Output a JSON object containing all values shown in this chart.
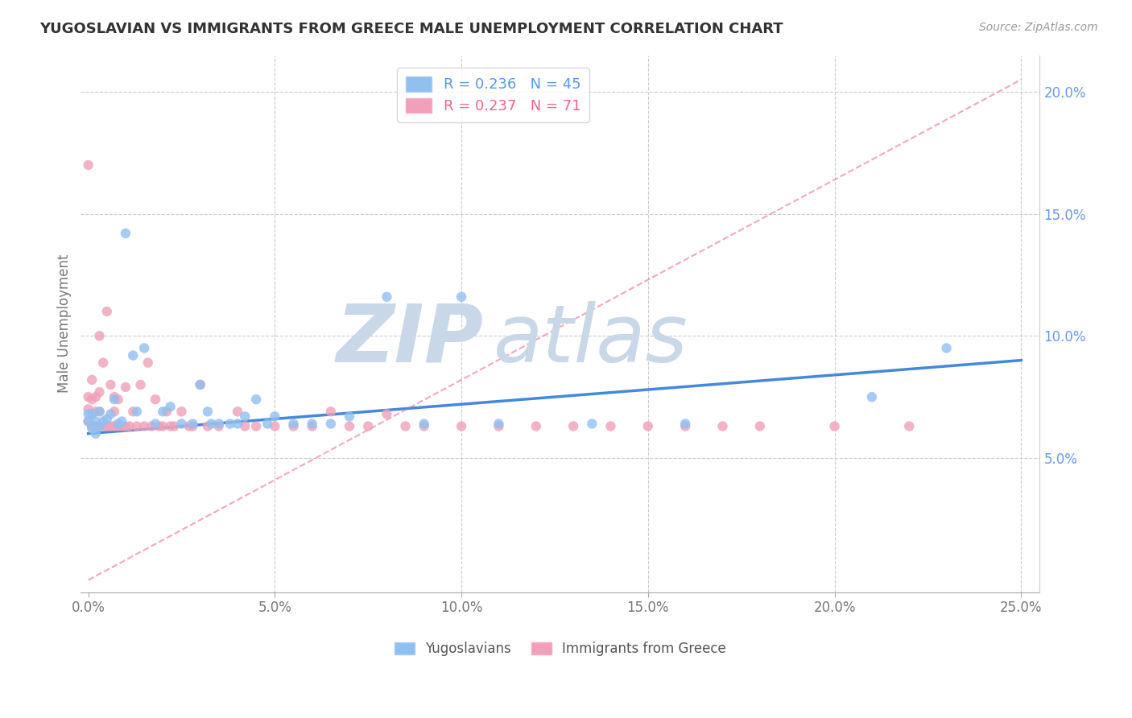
{
  "title": "YUGOSLAVIAN VS IMMIGRANTS FROM GREECE MALE UNEMPLOYMENT CORRELATION CHART",
  "source_text": "Source: ZipAtlas.com",
  "ylabel": "Male Unemployment",
  "xlabel_ticks": [
    "0.0%",
    "5.0%",
    "10.0%",
    "15.0%",
    "20.0%",
    "25.0%"
  ],
  "xlabel_vals": [
    0.0,
    0.05,
    0.1,
    0.15,
    0.2,
    0.25
  ],
  "ylabel_ticks": [
    "5.0%",
    "10.0%",
    "15.0%",
    "20.0%"
  ],
  "ylabel_vals": [
    0.05,
    0.1,
    0.15,
    0.2
  ],
  "xlim": [
    -0.002,
    0.255
  ],
  "ylim": [
    -0.005,
    0.215
  ],
  "series1_color": "#90C0F0",
  "series2_color": "#F0A0B8",
  "series1_line_color": "#4488DD",
  "series2_line_color": "#E87090",
  "watermark_zip_color": "#C8D8E8",
  "watermark_atlas_color": "#C8D8E8",
  "background_color": "#FFFFFF",
  "grid_color": "#CCCCCC",
  "yug_line_x0": 0.0,
  "yug_line_x1": 0.25,
  "yug_line_y0": 0.06,
  "yug_line_y1": 0.09,
  "greece_line_x0": 0.0,
  "greece_line_x1": 0.25,
  "greece_line_y0": 0.0,
  "greece_line_y1": 0.205,
  "yugoslavians_x": [
    0.0,
    0.0,
    0.001,
    0.001,
    0.002,
    0.002,
    0.003,
    0.003,
    0.004,
    0.005,
    0.006,
    0.007,
    0.008,
    0.009,
    0.01,
    0.012,
    0.013,
    0.015,
    0.018,
    0.02,
    0.022,
    0.025,
    0.028,
    0.03,
    0.032,
    0.033,
    0.035,
    0.038,
    0.04,
    0.042,
    0.045,
    0.048,
    0.05,
    0.055,
    0.06,
    0.065,
    0.07,
    0.08,
    0.09,
    0.1,
    0.11,
    0.135,
    0.16,
    0.21,
    0.23
  ],
  "yugoslavians_y": [
    0.065,
    0.068,
    0.062,
    0.068,
    0.06,
    0.065,
    0.063,
    0.069,
    0.065,
    0.066,
    0.068,
    0.074,
    0.064,
    0.065,
    0.142,
    0.092,
    0.069,
    0.095,
    0.064,
    0.069,
    0.071,
    0.064,
    0.064,
    0.08,
    0.069,
    0.064,
    0.064,
    0.064,
    0.064,
    0.067,
    0.074,
    0.064,
    0.067,
    0.064,
    0.064,
    0.064,
    0.067,
    0.116,
    0.064,
    0.116,
    0.064,
    0.064,
    0.064,
    0.075,
    0.095
  ],
  "greece_x": [
    0.0,
    0.0,
    0.0,
    0.0,
    0.001,
    0.001,
    0.001,
    0.001,
    0.002,
    0.002,
    0.002,
    0.003,
    0.003,
    0.003,
    0.003,
    0.004,
    0.004,
    0.005,
    0.005,
    0.006,
    0.006,
    0.007,
    0.007,
    0.007,
    0.008,
    0.008,
    0.009,
    0.01,
    0.01,
    0.011,
    0.012,
    0.013,
    0.014,
    0.015,
    0.016,
    0.017,
    0.018,
    0.019,
    0.02,
    0.021,
    0.022,
    0.023,
    0.025,
    0.027,
    0.028,
    0.03,
    0.032,
    0.035,
    0.04,
    0.042,
    0.045,
    0.05,
    0.055,
    0.06,
    0.065,
    0.07,
    0.075,
    0.08,
    0.085,
    0.09,
    0.1,
    0.11,
    0.12,
    0.13,
    0.14,
    0.15,
    0.16,
    0.17,
    0.18,
    0.2,
    0.22
  ],
  "greece_y": [
    0.065,
    0.07,
    0.075,
    0.17,
    0.063,
    0.068,
    0.074,
    0.082,
    0.063,
    0.069,
    0.075,
    0.063,
    0.069,
    0.077,
    0.1,
    0.063,
    0.089,
    0.063,
    0.11,
    0.063,
    0.08,
    0.063,
    0.069,
    0.075,
    0.063,
    0.074,
    0.063,
    0.063,
    0.079,
    0.063,
    0.069,
    0.063,
    0.08,
    0.063,
    0.089,
    0.063,
    0.074,
    0.063,
    0.063,
    0.069,
    0.063,
    0.063,
    0.069,
    0.063,
    0.063,
    0.08,
    0.063,
    0.063,
    0.069,
    0.063,
    0.063,
    0.063,
    0.063,
    0.063,
    0.069,
    0.063,
    0.063,
    0.068,
    0.063,
    0.063,
    0.063,
    0.063,
    0.063,
    0.063,
    0.063,
    0.063,
    0.063,
    0.063,
    0.063,
    0.063,
    0.063
  ]
}
